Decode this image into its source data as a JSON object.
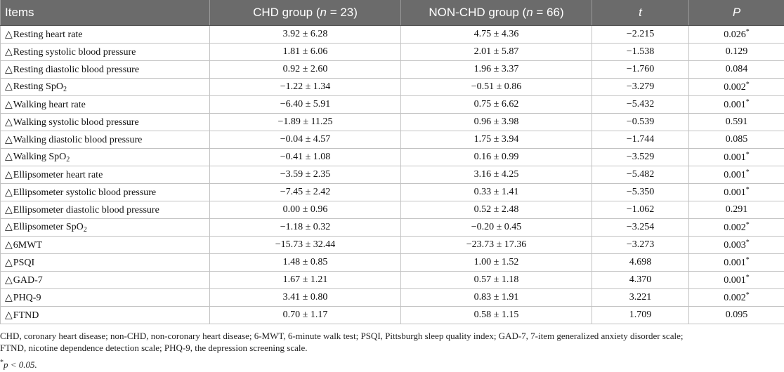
{
  "table": {
    "headers": {
      "items": "Items",
      "chd": "CHD group (n = 23)",
      "nonchd": "NON-CHD group (n = 66)",
      "t": "t",
      "p": "P"
    },
    "rows": [
      {
        "delta": "△",
        "item": "Resting heart rate",
        "chd": "3.92 ± 6.28",
        "nonchd": "4.75 ± 4.36",
        "t": "−2.215",
        "p": "0.026",
        "star": "*"
      },
      {
        "delta": "△",
        "item": "Resting systolic blood pressure",
        "chd": "1.81 ± 6.06",
        "nonchd": "2.01 ± 5.87",
        "t": "−1.538",
        "p": "0.129",
        "star": ""
      },
      {
        "delta": "△",
        "item": "Resting diastolic blood pressure",
        "chd": "0.92 ± 2.60",
        "nonchd": "1.96 ± 3.37",
        "t": "−1.760",
        "p": "0.084",
        "star": ""
      },
      {
        "delta": "△",
        "item": "Resting SpO",
        "sub": "2",
        "chd": "−1.22 ± 1.34",
        "nonchd": "−0.51 ± 0.86",
        "t": "−3.279",
        "p": "0.002",
        "star": "*"
      },
      {
        "delta": "△",
        "item": "Walking heart rate",
        "chd": "−6.40 ± 5.91",
        "nonchd": "0.75 ± 6.62",
        "t": "−5.432",
        "p": "0.001",
        "star": "*"
      },
      {
        "delta": "△",
        "item": "Walking systolic blood pressure",
        "chd": "−1.89 ± 11.25",
        "nonchd": "0.96 ± 3.98",
        "t": "−0.539",
        "p": "0.591",
        "star": ""
      },
      {
        "delta": "△",
        "item": "Walking diastolic blood pressure",
        "chd": "−0.04 ± 4.57",
        "nonchd": "1.75 ± 3.94",
        "t": "−1.744",
        "p": "0.085",
        "star": ""
      },
      {
        "delta": "△",
        "item": "Walking SpO",
        "sub": "2",
        "chd": "−0.41 ± 1.08",
        "nonchd": "0.16 ± 0.99",
        "t": "−3.529",
        "p": "0.001",
        "star": "*"
      },
      {
        "delta": "△",
        "item": "Ellipsometer heart rate",
        "chd": "−3.59 ± 2.35",
        "nonchd": "3.16 ± 4.25",
        "t": "−5.482",
        "p": "0.001",
        "star": "*"
      },
      {
        "delta": "△",
        "item": "Ellipsometer systolic blood pressure",
        "chd": "−7.45 ± 2.42",
        "nonchd": "0.33 ± 1.41",
        "t": "−5.350",
        "p": "0.001",
        "star": "*"
      },
      {
        "delta": "△",
        "item": "Ellipsometer diastolic blood pressure",
        "chd": "0.00 ± 0.96",
        "nonchd": "0.52 ± 2.48",
        "t": "−1.062",
        "p": "0.291",
        "star": ""
      },
      {
        "delta": "△",
        "item": "Ellipsometer SpO",
        "sub": "2",
        "chd": "−1.18 ± 0.32",
        "nonchd": "−0.20 ± 0.45",
        "t": "−3.254",
        "p": "0.002",
        "star": "*"
      },
      {
        "delta": "△",
        "item": "6MWT",
        "chd": "−15.73 ± 32.44",
        "nonchd": "−23.73 ± 17.36",
        "t": "−3.273",
        "p": "0.003",
        "star": "*"
      },
      {
        "delta": "△",
        "item": "PSQI",
        "chd": "1.48 ± 0.85",
        "nonchd": "1.00 ± 1.52",
        "t": "4.698",
        "p": "0.001",
        "star": "*"
      },
      {
        "delta": "△",
        "item": "GAD-7",
        "chd": "1.67 ± 1.21",
        "nonchd": "0.57 ± 1.18",
        "t": "4.370",
        "p": "0.001",
        "star": "*"
      },
      {
        "delta": "△",
        "item": "PHQ-9",
        "chd": "3.41 ± 0.80",
        "nonchd": "0.83 ± 1.91",
        "t": "3.221",
        "p": "0.002",
        "star": "*"
      },
      {
        "delta": "△",
        "item": "FTND",
        "chd": "0.70 ± 1.17",
        "nonchd": "0.58 ± 1.15",
        "t": "1.709",
        "p": "0.095",
        "star": ""
      }
    ]
  },
  "footnotes": {
    "abbreviations_line1": "CHD, coronary heart disease; non-CHD, non-coronary heart disease; 6-MWT, 6-minute walk test; PSQI, Pittsburgh sleep quality index; GAD-7, 7-item generalized anxiety disorder scale;",
    "abbreviations_line2": "FTND, nicotine dependence detection scale; PHQ-9, the depression screening scale.",
    "sig_star": "*",
    "sig_text": "p < 0.05."
  },
  "colors": {
    "header_bg": "#6b6b6b",
    "header_text": "#ffffff",
    "grid": "#c2c2c2"
  }
}
